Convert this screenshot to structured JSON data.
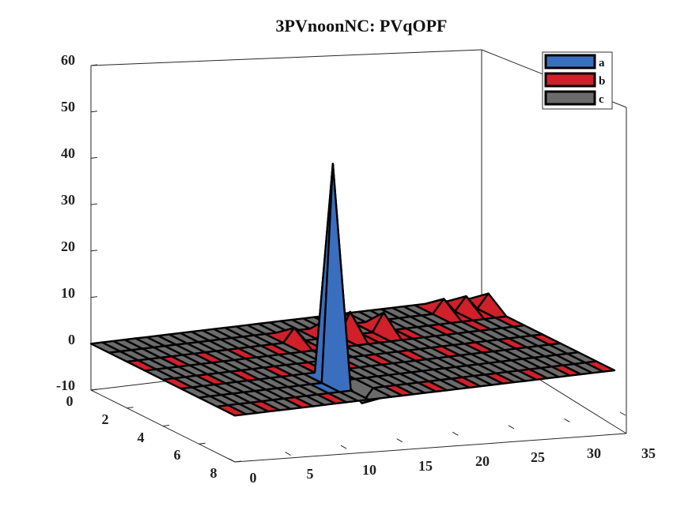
{
  "chart_data": {
    "type": "surface",
    "title": "3PVnoonNC: PVqOPF",
    "xlabel": "",
    "ylabel": "",
    "zlabel": "",
    "x_ticks": [
      "0",
      "5",
      "10",
      "15",
      "20",
      "25",
      "30",
      "35"
    ],
    "y_ticks": [
      "0",
      "2",
      "4",
      "6",
      "8"
    ],
    "z_ticks": [
      "-10",
      "0",
      "10",
      "20",
      "30",
      "40",
      "50",
      "60"
    ],
    "xlim": [
      0,
      35
    ],
    "ylim": [
      0,
      8
    ],
    "zlim": [
      -10,
      60
    ],
    "grid": "off",
    "legend_position": "top-right",
    "series": [
      {
        "name": "a",
        "color": "#3a6fbf",
        "points": [
          {
            "x": 11,
            "y": 6,
            "z": 0
          },
          {
            "x": 12,
            "y": 6,
            "z": 47
          },
          {
            "x": 13,
            "y": 6,
            "z": 0
          },
          {
            "x": 12,
            "y": 5,
            "z": 0
          },
          {
            "x": 12,
            "y": 7,
            "z": 0
          }
        ]
      },
      {
        "name": "b",
        "color": "#d0202a",
        "points": [
          {
            "x": 15,
            "y": 2,
            "z": 3
          },
          {
            "x": 18,
            "y": 2,
            "z": 4
          },
          {
            "x": 20,
            "y": 2,
            "z": 5
          },
          {
            "x": 23,
            "y": 2,
            "z": 4
          },
          {
            "x": 30,
            "y": 1,
            "z": 3
          },
          {
            "x": 32,
            "y": 1,
            "z": 3
          },
          {
            "x": 34,
            "y": 1,
            "z": 3
          }
        ]
      },
      {
        "name": "c",
        "color": "#6b6b6b",
        "points": [
          {
            "x": 13,
            "y": 7,
            "z": -3
          }
        ]
      }
    ]
  }
}
